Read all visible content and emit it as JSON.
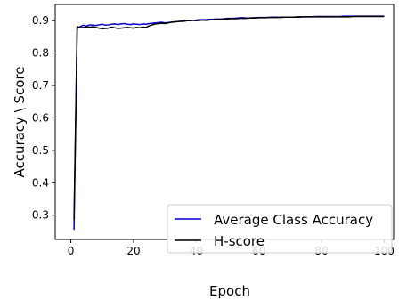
{
  "chart_data": {
    "type": "line",
    "title": "",
    "xlabel": "Epoch",
    "ylabel": "Accuracy \\ Score",
    "xlim": [
      -5,
      103
    ],
    "ylim": [
      0.225,
      0.95
    ],
    "xticks": [
      0,
      20,
      40,
      60,
      80,
      100
    ],
    "yticks": [
      0.3,
      0.4,
      0.5,
      0.6,
      0.7,
      0.8,
      0.9
    ],
    "xtick_labels": [
      "0",
      "20",
      "40",
      "60",
      "80",
      "100"
    ],
    "ytick_labels": [
      "0.3",
      "0.4",
      "0.5",
      "0.6",
      "0.7",
      "0.8",
      "0.9"
    ],
    "grid": false,
    "legend_position": "lower-right",
    "x": [
      1,
      2,
      3,
      4,
      5,
      6,
      7,
      8,
      9,
      10,
      11,
      12,
      13,
      14,
      15,
      16,
      17,
      18,
      19,
      20,
      21,
      22,
      23,
      24,
      25,
      26,
      27,
      28,
      29,
      30,
      31,
      32,
      33,
      34,
      35,
      36,
      37,
      38,
      39,
      40,
      41,
      42,
      43,
      44,
      45,
      46,
      47,
      48,
      49,
      50,
      51,
      52,
      53,
      54,
      55,
      56,
      57,
      58,
      59,
      60,
      61,
      62,
      63,
      64,
      65,
      66,
      67,
      68,
      69,
      70,
      71,
      72,
      73,
      74,
      75,
      76,
      77,
      78,
      79,
      80,
      81,
      82,
      83,
      84,
      85,
      86,
      87,
      88,
      89,
      90,
      91,
      92,
      93,
      94,
      95,
      96,
      97,
      98,
      99,
      100
    ],
    "series": [
      {
        "name": "Average Class Accuracy",
        "color": "#0000cc",
        "values": [
          0.255,
          0.875,
          0.882,
          0.886,
          0.883,
          0.887,
          0.886,
          0.885,
          0.887,
          0.889,
          0.886,
          0.887,
          0.889,
          0.89,
          0.888,
          0.89,
          0.891,
          0.889,
          0.888,
          0.89,
          0.889,
          0.888,
          0.89,
          0.889,
          0.891,
          0.892,
          0.893,
          0.894,
          0.895,
          0.893,
          0.894,
          0.895,
          0.896,
          0.897,
          0.898,
          0.899,
          0.9,
          0.901,
          0.901,
          0.902,
          0.903,
          0.903,
          0.903,
          0.904,
          0.904,
          0.905,
          0.905,
          0.905,
          0.906,
          0.907,
          0.907,
          0.907,
          0.908,
          0.909,
          0.909,
          0.908,
          0.908,
          0.909,
          0.909,
          0.91,
          0.91,
          0.91,
          0.91,
          0.911,
          0.911,
          0.911,
          0.91,
          0.911,
          0.911,
          0.911,
          0.911,
          0.912,
          0.912,
          0.912,
          0.912,
          0.912,
          0.912,
          0.913,
          0.913,
          0.913,
          0.913,
          0.913,
          0.913,
          0.913,
          0.913,
          0.913,
          0.914,
          0.914,
          0.914,
          0.914,
          0.914,
          0.914,
          0.914,
          0.914,
          0.914,
          0.914,
          0.914,
          0.914,
          0.914,
          0.914
        ]
      },
      {
        "name": "H-score",
        "color": "#000000",
        "values": [
          0.285,
          0.882,
          0.878,
          0.879,
          0.88,
          0.88,
          0.881,
          0.879,
          0.877,
          0.875,
          0.876,
          0.877,
          0.88,
          0.878,
          0.876,
          0.877,
          0.878,
          0.879,
          0.878,
          0.877,
          0.879,
          0.878,
          0.88,
          0.879,
          0.884,
          0.887,
          0.89,
          0.891,
          0.892,
          0.891,
          0.893,
          0.895,
          0.896,
          0.897,
          0.898,
          0.898,
          0.9,
          0.9,
          0.901,
          0.9,
          0.901,
          0.902,
          0.901,
          0.902,
          0.903,
          0.903,
          0.904,
          0.904,
          0.905,
          0.905,
          0.906,
          0.906,
          0.906,
          0.907,
          0.907,
          0.907,
          0.908,
          0.908,
          0.908,
          0.909,
          0.909,
          0.909,
          0.91,
          0.91,
          0.91,
          0.91,
          0.911,
          0.911,
          0.911,
          0.911,
          0.911,
          0.911,
          0.911,
          0.912,
          0.912,
          0.912,
          0.912,
          0.912,
          0.912,
          0.912,
          0.912,
          0.912,
          0.912,
          0.912,
          0.912,
          0.912,
          0.912,
          0.912,
          0.912,
          0.913,
          0.913,
          0.913,
          0.913,
          0.913,
          0.913,
          0.913,
          0.913,
          0.913,
          0.913,
          0.913
        ]
      }
    ]
  }
}
